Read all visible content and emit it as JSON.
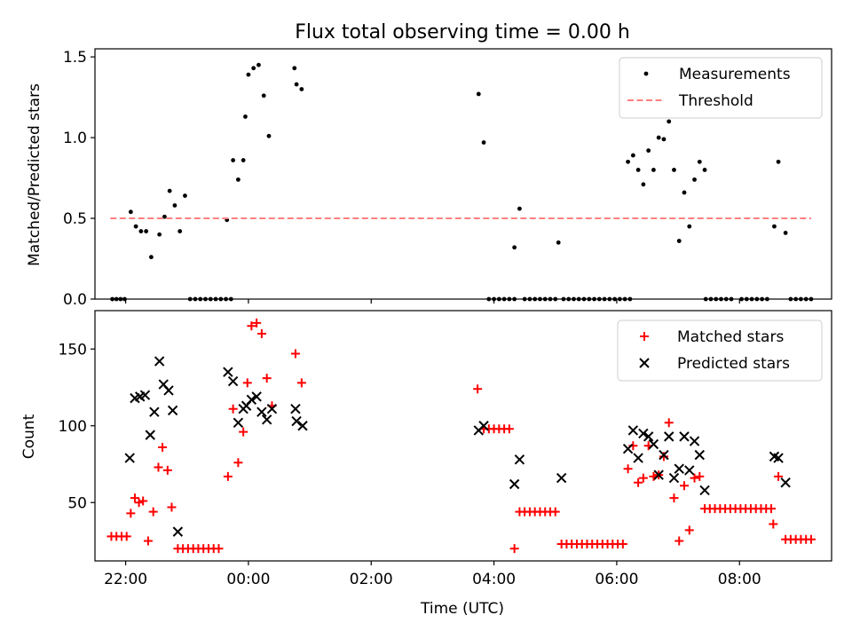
{
  "title": "Flux total observing time = 0.00 h",
  "colors": {
    "measurement": "#000000",
    "threshold": "#ff7f7f",
    "matched": "#ff0000",
    "predicted": "#000000"
  },
  "chart_data": [
    {
      "type": "scatter",
      "ylabel": "Matched/Predicted stars",
      "xlabel": "",
      "xlim": [
        "21:30",
        "09:30"
      ],
      "ylim": [
        0,
        1.55
      ],
      "yticks": [
        0.0,
        0.5,
        1.0,
        1.5
      ],
      "ytick_labels": [
        "0.0",
        "0.5",
        "1.0",
        "1.5"
      ],
      "xticks": [
        "22:00",
        "00:00",
        "02:00",
        "04:00",
        "06:00",
        "08:00"
      ],
      "xtick_labels": [],
      "legend": {
        "position": "upper right",
        "entries": [
          "Measurements",
          "Threshold"
        ]
      },
      "series": [
        {
          "name": "Measurements",
          "marker": "dot",
          "points": [
            [
              "21:47",
              0
            ],
            [
              "21:51",
              0
            ],
            [
              "21:55",
              0
            ],
            [
              "21:59",
              0
            ],
            [
              "22:05",
              0.54
            ],
            [
              "22:10",
              0.45
            ],
            [
              "22:15",
              0.42
            ],
            [
              "22:20",
              0.42
            ],
            [
              "22:25",
              0.26
            ],
            [
              "22:33",
              0.4
            ],
            [
              "22:38",
              0.51
            ],
            [
              "22:43",
              0.67
            ],
            [
              "22:48",
              0.58
            ],
            [
              "22:53",
              0.42
            ],
            [
              "22:58",
              0.64
            ],
            [
              "23:03",
              0
            ],
            [
              "23:08",
              0
            ],
            [
              "23:13",
              0
            ],
            [
              "23:18",
              0
            ],
            [
              "23:23",
              0
            ],
            [
              "23:28",
              0
            ],
            [
              "23:33",
              0
            ],
            [
              "23:38",
              0
            ],
            [
              "23:43",
              0
            ],
            [
              "23:39",
              0.49
            ],
            [
              "23:45",
              0.86
            ],
            [
              "23:50",
              0.74
            ],
            [
              "23:55",
              0.86
            ],
            [
              "23:57",
              1.13
            ],
            [
              "00:00",
              1.39
            ],
            [
              "00:05",
              1.43
            ],
            [
              "00:10",
              1.45
            ],
            [
              "00:15",
              1.26
            ],
            [
              "00:20",
              1.01
            ],
            [
              "00:45",
              1.43
            ],
            [
              "00:47",
              1.33
            ],
            [
              "00:52",
              1.3
            ],
            [
              "03:45",
              1.27
            ],
            [
              "03:50",
              0.97
            ],
            [
              "03:55",
              0
            ],
            [
              "04:00",
              0
            ],
            [
              "04:05",
              0
            ],
            [
              "04:10",
              0
            ],
            [
              "04:15",
              0
            ],
            [
              "04:20",
              0
            ],
            [
              "04:20",
              0.32
            ],
            [
              "04:25",
              0.56
            ],
            [
              "04:30",
              0
            ],
            [
              "04:35",
              0
            ],
            [
              "04:40",
              0
            ],
            [
              "04:45",
              0
            ],
            [
              "04:50",
              0
            ],
            [
              "04:55",
              0
            ],
            [
              "05:00",
              0
            ],
            [
              "05:03",
              0.35
            ],
            [
              "05:08",
              0
            ],
            [
              "05:13",
              0
            ],
            [
              "05:18",
              0
            ],
            [
              "05:23",
              0
            ],
            [
              "05:28",
              0
            ],
            [
              "05:33",
              0
            ],
            [
              "05:38",
              0
            ],
            [
              "05:43",
              0
            ],
            [
              "05:48",
              0
            ],
            [
              "05:53",
              0
            ],
            [
              "05:58",
              0
            ],
            [
              "06:03",
              0
            ],
            [
              "06:08",
              0
            ],
            [
              "06:13",
              0
            ],
            [
              "06:11",
              0.85
            ],
            [
              "06:16",
              0.89
            ],
            [
              "06:21",
              0.8
            ],
            [
              "06:26",
              0.71
            ],
            [
              "06:31",
              0.92
            ],
            [
              "06:36",
              0.8
            ],
            [
              "06:41",
              1.0
            ],
            [
              "06:46",
              0.99
            ],
            [
              "06:51",
              1.1
            ],
            [
              "06:56",
              0.8
            ],
            [
              "07:01",
              0.36
            ],
            [
              "07:06",
              0.66
            ],
            [
              "07:11",
              0.45
            ],
            [
              "07:16",
              0.74
            ],
            [
              "07:21",
              0.85
            ],
            [
              "07:26",
              0.8
            ],
            [
              "07:27",
              0
            ],
            [
              "07:32",
              0
            ],
            [
              "07:37",
              0
            ],
            [
              "07:42",
              0
            ],
            [
              "07:47",
              0
            ],
            [
              "07:52",
              0
            ],
            [
              "08:02",
              0
            ],
            [
              "08:07",
              0
            ],
            [
              "08:12",
              0
            ],
            [
              "08:17",
              0
            ],
            [
              "08:22",
              0
            ],
            [
              "08:27",
              0
            ],
            [
              "08:34",
              0.45
            ],
            [
              "08:38",
              0.85
            ],
            [
              "08:45",
              0.41
            ],
            [
              "08:50",
              0
            ],
            [
              "08:55",
              0
            ],
            [
              "09:00",
              0
            ],
            [
              "09:05",
              0
            ],
            [
              "09:10",
              0
            ]
          ]
        },
        {
          "name": "Threshold",
          "style": "dashed-line",
          "points": [
            [
              "21:45",
              0.5
            ],
            [
              "09:10",
              0.5
            ]
          ]
        }
      ]
    },
    {
      "type": "scatter",
      "ylabel": "Count",
      "xlabel": "Time (UTC)",
      "xlim": [
        "21:30",
        "09:30"
      ],
      "ylim": [
        12,
        175
      ],
      "yticks": [
        50,
        100,
        150
      ],
      "ytick_labels": [
        "50",
        "100",
        "150"
      ],
      "xticks": [
        "22:00",
        "00:00",
        "02:00",
        "04:00",
        "06:00",
        "08:00"
      ],
      "xtick_labels": [
        "22:00",
        "00:00",
        "02:00",
        "04:00",
        "06:00",
        "08:00"
      ],
      "legend": {
        "position": "upper right",
        "entries": [
          "Matched stars",
          "Predicted stars"
        ]
      },
      "series": [
        {
          "name": "Matched stars",
          "marker": "plus",
          "points": [
            [
              "21:46",
              28
            ],
            [
              "21:51",
              28
            ],
            [
              "21:56",
              28
            ],
            [
              "22:01",
              28
            ],
            [
              "22:05",
              43
            ],
            [
              "22:09",
              53
            ],
            [
              "22:13",
              50
            ],
            [
              "22:17",
              51
            ],
            [
              "22:22",
              25
            ],
            [
              "22:27",
              44
            ],
            [
              "22:32",
              73
            ],
            [
              "22:36",
              86
            ],
            [
              "22:41",
              71
            ],
            [
              "22:45",
              47
            ],
            [
              "22:51",
              20
            ],
            [
              "22:56",
              20
            ],
            [
              "23:01",
              20
            ],
            [
              "23:06",
              20
            ],
            [
              "23:11",
              20
            ],
            [
              "23:16",
              20
            ],
            [
              "23:21",
              20
            ],
            [
              "23:26",
              20
            ],
            [
              "23:31",
              20
            ],
            [
              "23:40",
              67
            ],
            [
              "23:45",
              111
            ],
            [
              "23:50",
              76
            ],
            [
              "23:55",
              96
            ],
            [
              "23:59",
              128
            ],
            [
              "00:03",
              165
            ],
            [
              "00:08",
              167
            ],
            [
              "00:13",
              160
            ],
            [
              "00:18",
              131
            ],
            [
              "00:23",
              113
            ],
            [
              "00:46",
              147
            ],
            [
              "00:52",
              128
            ],
            [
              "03:44",
              124
            ],
            [
              "03:50",
              98
            ],
            [
              "03:55",
              98
            ],
            [
              "04:00",
              98
            ],
            [
              "04:05",
              98
            ],
            [
              "04:10",
              98
            ],
            [
              "04:15",
              98
            ],
            [
              "04:20",
              20
            ],
            [
              "04:25",
              44
            ],
            [
              "04:30",
              44
            ],
            [
              "04:35",
              44
            ],
            [
              "04:40",
              44
            ],
            [
              "04:45",
              44
            ],
            [
              "04:50",
              44
            ],
            [
              "04:55",
              44
            ],
            [
              "05:00",
              44
            ],
            [
              "05:06",
              23
            ],
            [
              "05:11",
              23
            ],
            [
              "05:16",
              23
            ],
            [
              "05:21",
              23
            ],
            [
              "05:26",
              23
            ],
            [
              "05:31",
              23
            ],
            [
              "05:36",
              23
            ],
            [
              "05:41",
              23
            ],
            [
              "05:46",
              23
            ],
            [
              "05:51",
              23
            ],
            [
              "05:56",
              23
            ],
            [
              "06:01",
              23
            ],
            [
              "06:06",
              23
            ],
            [
              "06:11",
              72
            ],
            [
              "06:16",
              87
            ],
            [
              "06:21",
              63
            ],
            [
              "06:26",
              66
            ],
            [
              "06:31",
              87
            ],
            [
              "06:36",
              67
            ],
            [
              "06:41",
              68
            ],
            [
              "06:46",
              80
            ],
            [
              "06:51",
              102
            ],
            [
              "06:56",
              53
            ],
            [
              "07:01",
              25
            ],
            [
              "07:06",
              61
            ],
            [
              "07:11",
              32
            ],
            [
              "07:16",
              66
            ],
            [
              "07:21",
              67
            ],
            [
              "07:26",
              46
            ],
            [
              "07:31",
              46
            ],
            [
              "07:36",
              46
            ],
            [
              "07:41",
              46
            ],
            [
              "07:46",
              46
            ],
            [
              "07:51",
              46
            ],
            [
              "07:56",
              46
            ],
            [
              "08:01",
              46
            ],
            [
              "08:06",
              46
            ],
            [
              "08:11",
              46
            ],
            [
              "08:16",
              46
            ],
            [
              "08:21",
              46
            ],
            [
              "08:26",
              46
            ],
            [
              "08:31",
              46
            ],
            [
              "08:33",
              36
            ],
            [
              "08:38",
              67
            ],
            [
              "08:45",
              26
            ],
            [
              "08:50",
              26
            ],
            [
              "08:55",
              26
            ],
            [
              "09:00",
              26
            ],
            [
              "09:05",
              26
            ],
            [
              "09:10",
              26
            ]
          ]
        },
        {
          "name": "Predicted stars",
          "marker": "x",
          "points": [
            [
              "22:04",
              79
            ],
            [
              "22:09",
              118
            ],
            [
              "22:14",
              119
            ],
            [
              "22:19",
              120
            ],
            [
              "22:24",
              94
            ],
            [
              "22:28",
              109
            ],
            [
              "22:33",
              142
            ],
            [
              "22:37",
              127
            ],
            [
              "22:42",
              123
            ],
            [
              "22:46",
              110
            ],
            [
              "22:51",
              31
            ],
            [
              "23:40",
              135
            ],
            [
              "23:45",
              129
            ],
            [
              "23:50",
              102
            ],
            [
              "23:55",
              111
            ],
            [
              "23:58",
              113
            ],
            [
              "00:03",
              117
            ],
            [
              "00:08",
              119
            ],
            [
              "00:13",
              109
            ],
            [
              "00:18",
              104
            ],
            [
              "00:23",
              111
            ],
            [
              "00:46",
              111
            ],
            [
              "00:47",
              103
            ],
            [
              "00:53",
              100
            ],
            [
              "03:45",
              97
            ],
            [
              "03:50",
              100
            ],
            [
              "04:20",
              62
            ],
            [
              "04:25",
              78
            ],
            [
              "05:06",
              66
            ],
            [
              "06:11",
              85
            ],
            [
              "06:16",
              97
            ],
            [
              "06:21",
              79
            ],
            [
              "06:26",
              95
            ],
            [
              "06:31",
              93
            ],
            [
              "06:36",
              88
            ],
            [
              "06:41",
              68
            ],
            [
              "06:46",
              81
            ],
            [
              "06:51",
              93
            ],
            [
              "06:56",
              66
            ],
            [
              "07:01",
              72
            ],
            [
              "07:06",
              93
            ],
            [
              "07:11",
              71
            ],
            [
              "07:16",
              90
            ],
            [
              "07:21",
              81
            ],
            [
              "07:26",
              58
            ],
            [
              "08:34",
              80
            ],
            [
              "08:38",
              79
            ],
            [
              "08:45",
              63
            ]
          ]
        }
      ]
    }
  ]
}
